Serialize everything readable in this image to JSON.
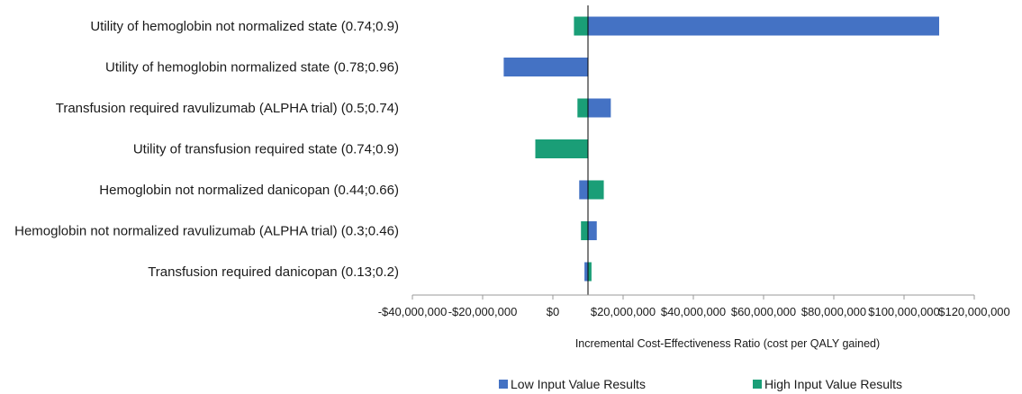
{
  "chart_data": {
    "type": "bar",
    "orientation": "horizontal",
    "subtype": "tornado",
    "title": "",
    "xlabel": "Incremental Cost-Effectiveness Ratio (cost per QALY gained)",
    "ylabel": "",
    "base_value": 10000000,
    "xlim": [
      -40000000,
      120000000
    ],
    "x_ticks": [
      -40000000,
      -20000000,
      0,
      20000000,
      40000000,
      60000000,
      80000000,
      100000000,
      120000000
    ],
    "x_tick_labels": [
      "-$40,000,000",
      "-$20,000,000",
      "$0",
      "$20,000,000",
      "$40,000,000",
      "$60,000,000",
      "$80,000,000",
      "$100,000,000",
      "$120,000,000"
    ],
    "grid": false,
    "legend_position": "bottom",
    "categories": [
      "Utility of hemoglobin not normalized state (0.74;0.9)",
      "Utility of hemoglobin normalized state (0.78;0.96)",
      "Transfusion required ravulizumab (ALPHA trial) (0.5;0.74)",
      "Utility of transfusion required state (0.74;0.9)",
      "Hemoglobin not normalized danicopan (0.44;0.66)",
      "Hemoglobin not normalized ravulizumab (ALPHA trial) (0.3;0.46)",
      "Transfusion required danicopan (0.13;0.2)"
    ],
    "series": [
      {
        "name": "Low Input Value Results",
        "color": "#4472C4",
        "values": [
          110000000,
          -14000000,
          16500000,
          10000000,
          7500000,
          12500000,
          9000000
        ]
      },
      {
        "name": "High Input Value Results",
        "color": "#1A9E77",
        "values": [
          6000000,
          10000000,
          7000000,
          -5000000,
          14500000,
          8000000,
          11000000
        ]
      }
    ]
  }
}
